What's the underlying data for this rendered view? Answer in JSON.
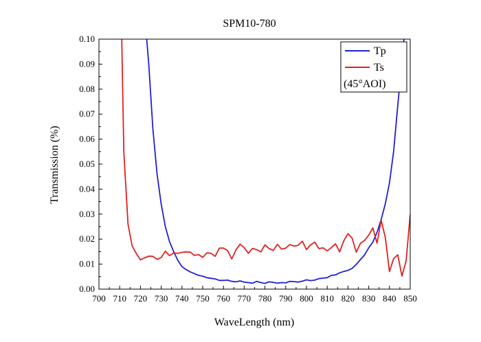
{
  "chart_data": {
    "type": "line",
    "title": "SPM10-780",
    "xlabel": "WaveLength (nm)",
    "ylabel": "Transmission (%)",
    "xlim": [
      700,
      850
    ],
    "ylim": [
      0,
      0.1
    ],
    "x_ticks": [
      "700",
      "710",
      "720",
      "730",
      "740",
      "750",
      "760",
      "770",
      "780",
      "790",
      "800",
      "810",
      "820",
      "830",
      "840",
      "850"
    ],
    "y_ticks": [
      "0.00",
      "0.01",
      "0.02",
      "0.03",
      "0.04",
      "0.05",
      "0.06",
      "0.07",
      "0.08",
      "0.09",
      "0.10"
    ],
    "grid": false,
    "legend_position": "top-right",
    "legend_note": "(45°AOI)",
    "series": [
      {
        "name": "Tp",
        "color": "#1f1fd6",
        "x": [
          723,
          724,
          726,
          728,
          730,
          732,
          734,
          736,
          738,
          740,
          742,
          744,
          746,
          748,
          750,
          752,
          754,
          756,
          758,
          760,
          762,
          764,
          766,
          768,
          770,
          772,
          774,
          776,
          778,
          780,
          782,
          784,
          786,
          788,
          790,
          792,
          794,
          796,
          798,
          800,
          802,
          804,
          806,
          808,
          810,
          812,
          814,
          816,
          818,
          820,
          822,
          824,
          826,
          828,
          830,
          832,
          834,
          836,
          838,
          840,
          842,
          844,
          846,
          847
        ],
        "values": [
          0.1,
          0.09,
          0.064,
          0.046,
          0.034,
          0.025,
          0.019,
          0.015,
          0.0115,
          0.009,
          0.0078,
          0.0069,
          0.0062,
          0.0055,
          0.0052,
          0.0046,
          0.0043,
          0.0041,
          0.0035,
          0.0035,
          0.0036,
          0.0031,
          0.0029,
          0.0033,
          0.0028,
          0.0026,
          0.0024,
          0.0031,
          0.0026,
          0.0023,
          0.0029,
          0.0027,
          0.0024,
          0.0026,
          0.0025,
          0.0031,
          0.003,
          0.0028,
          0.0032,
          0.0037,
          0.0034,
          0.0036,
          0.0042,
          0.0044,
          0.0046,
          0.0055,
          0.0057,
          0.0065,
          0.0071,
          0.0075,
          0.0083,
          0.0099,
          0.0118,
          0.0137,
          0.0165,
          0.0188,
          0.0227,
          0.0278,
          0.0342,
          0.0425,
          0.055,
          0.0735,
          0.091,
          0.1
        ]
      },
      {
        "name": "Ts",
        "color": "#e21f1f",
        "x": [
          711,
          712,
          714,
          716,
          718,
          720,
          722,
          724,
          726,
          728,
          730,
          732,
          734,
          736,
          738,
          740,
          742,
          744,
          746,
          748,
          750,
          752,
          754,
          756,
          758,
          760,
          762,
          764,
          766,
          768,
          770,
          772,
          774,
          776,
          778,
          780,
          782,
          784,
          786,
          788,
          790,
          792,
          794,
          796,
          798,
          800,
          802,
          804,
          806,
          808,
          810,
          812,
          814,
          816,
          818,
          820,
          822,
          824,
          826,
          828,
          830,
          832,
          834,
          836,
          838,
          840,
          842,
          844,
          846,
          848,
          850
        ],
        "values": [
          0.1,
          0.055,
          0.026,
          0.0173,
          0.0142,
          0.0117,
          0.0125,
          0.0132,
          0.0131,
          0.0119,
          0.0126,
          0.0152,
          0.0134,
          0.0145,
          0.0143,
          0.0147,
          0.0149,
          0.0148,
          0.0135,
          0.0138,
          0.0127,
          0.0145,
          0.0143,
          0.0131,
          0.0164,
          0.0164,
          0.0154,
          0.0121,
          0.0156,
          0.018,
          0.0166,
          0.0143,
          0.0163,
          0.0158,
          0.0149,
          0.0177,
          0.0162,
          0.0155,
          0.0179,
          0.016,
          0.0164,
          0.0178,
          0.0172,
          0.0175,
          0.0192,
          0.0158,
          0.0177,
          0.0188,
          0.0162,
          0.0165,
          0.0153,
          0.0166,
          0.0181,
          0.0149,
          0.0194,
          0.0222,
          0.0204,
          0.0148,
          0.0183,
          0.0195,
          0.0216,
          0.0245,
          0.0184,
          0.0275,
          0.0206,
          0.007,
          0.0122,
          0.0137,
          0.0052,
          0.0112,
          0.0298
        ]
      }
    ]
  }
}
